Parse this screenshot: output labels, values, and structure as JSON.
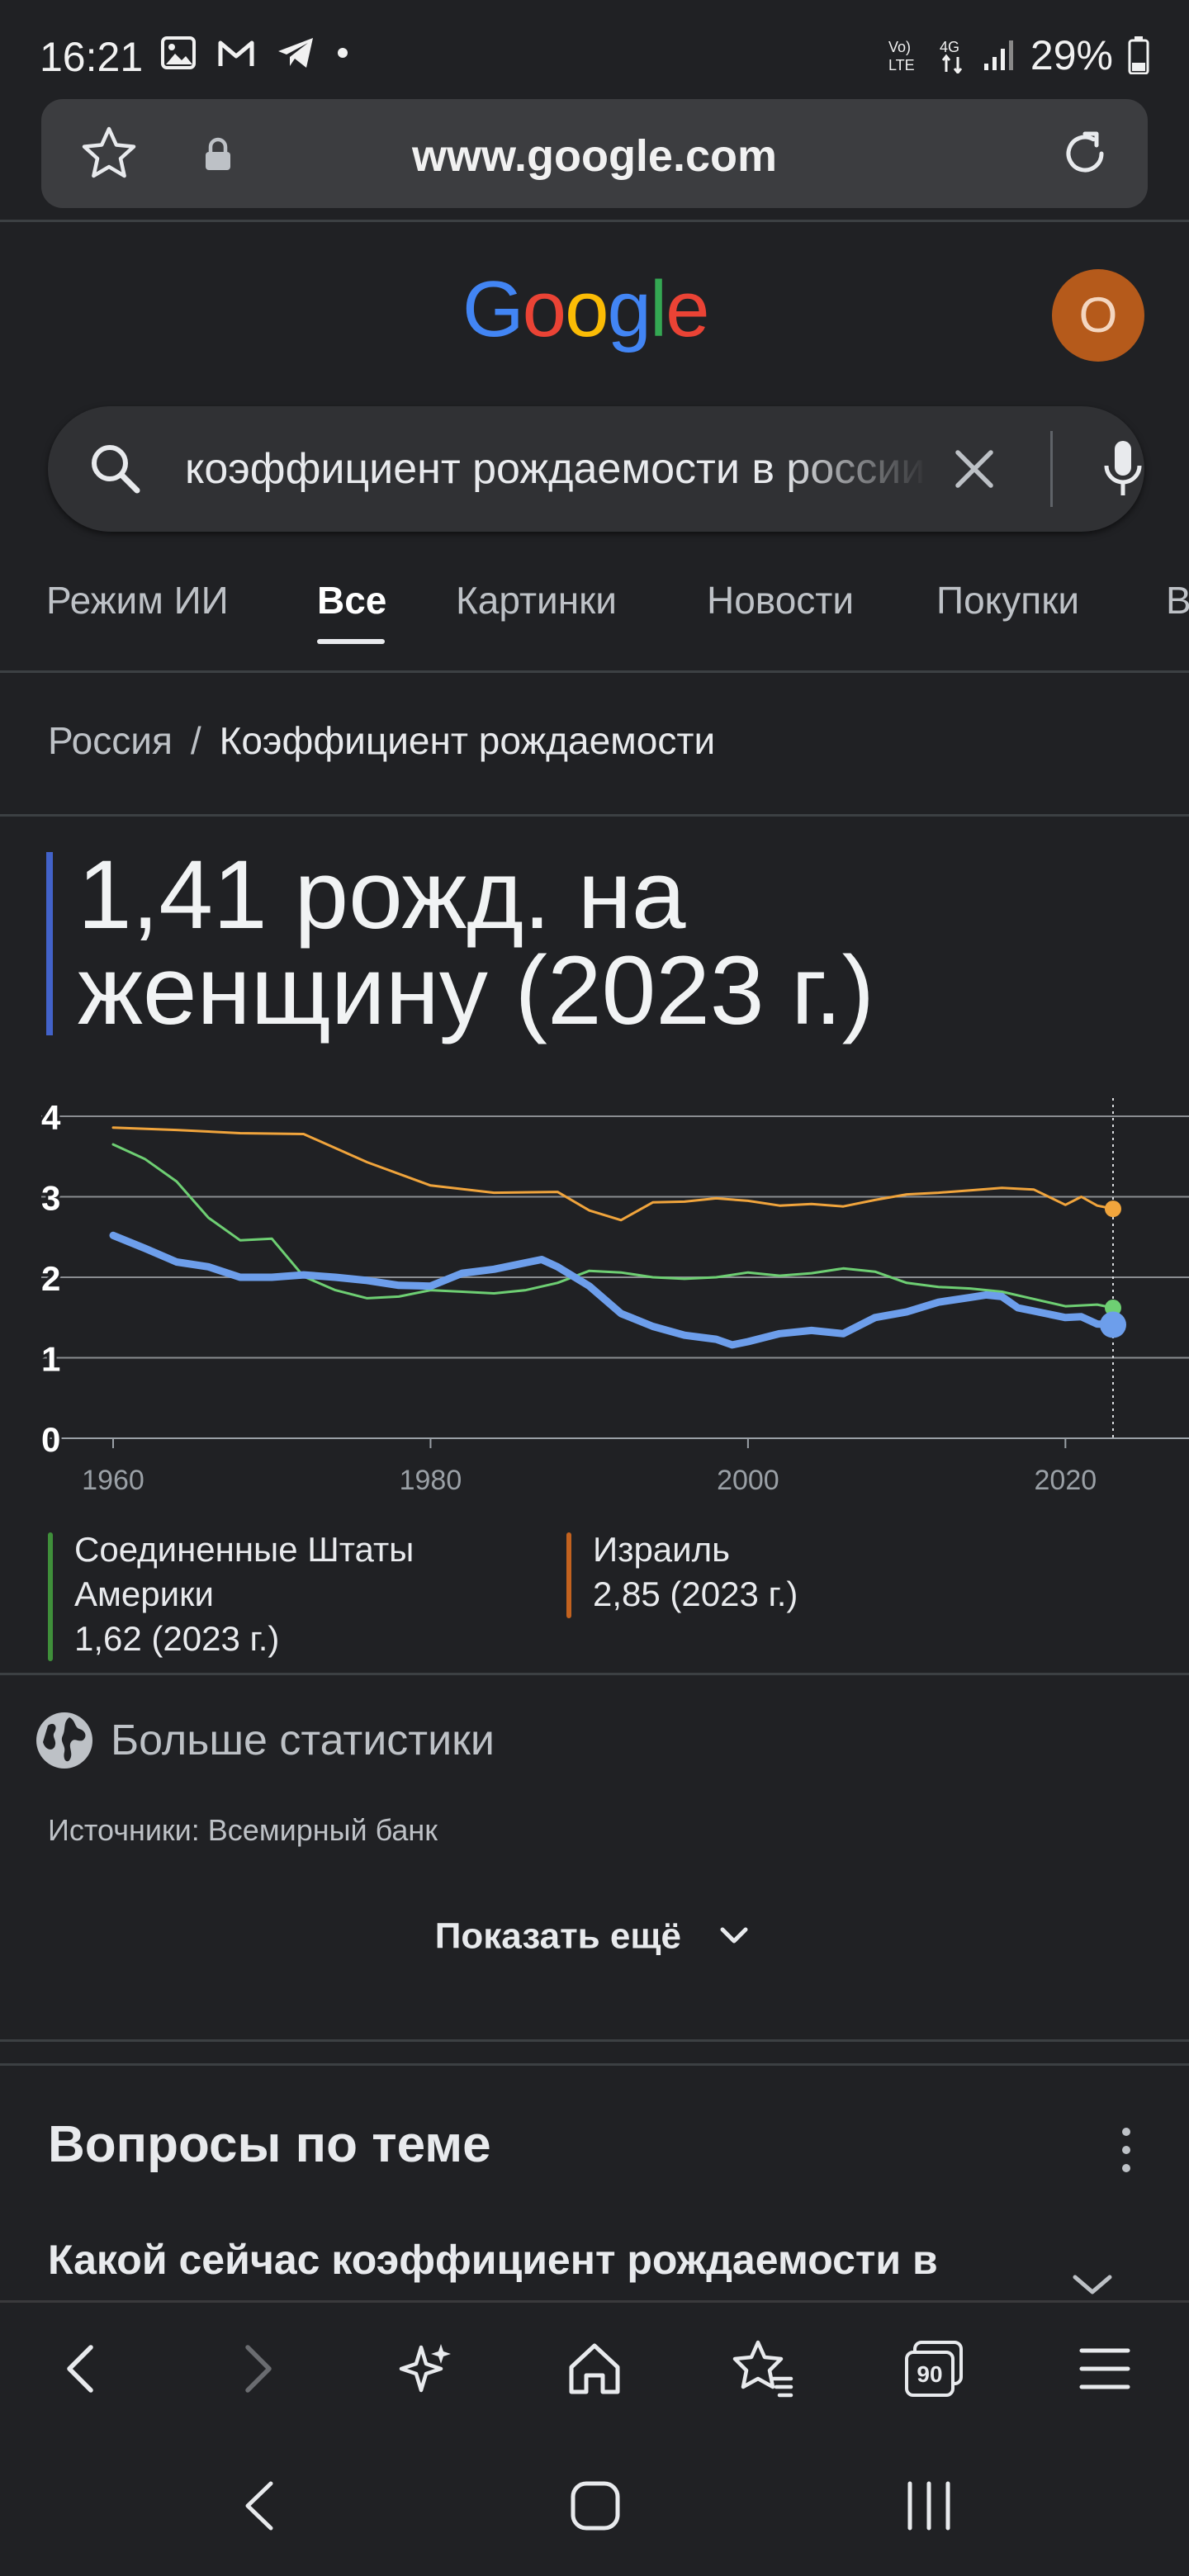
{
  "status_bar": {
    "time": "16:21",
    "icons": [
      "image-notification-icon",
      "gmail-icon",
      "telegram-icon",
      "dot-icon"
    ],
    "network": "VoLTE 4G",
    "battery": "29%"
  },
  "browser": {
    "url": "www.google.com"
  },
  "header": {
    "logo_letters": [
      "G",
      "o",
      "o",
      "g",
      "l",
      "e"
    ],
    "logo_colors": [
      "#4285f4",
      "#ea4335",
      "#fbbc05",
      "#4285f4",
      "#34a853",
      "#ea4335"
    ],
    "avatar_letter": "O",
    "avatar_color": "#b55a1b"
  },
  "search": {
    "query": "коэффициент рождаемости в россии"
  },
  "tabs": [
    {
      "label": "Режим ИИ",
      "active": false
    },
    {
      "label": "Все",
      "active": true
    },
    {
      "label": "Картинки",
      "active": false
    },
    {
      "label": "Новости",
      "active": false
    },
    {
      "label": "Покупки",
      "active": false
    },
    {
      "label": "В",
      "active": false
    }
  ],
  "breadcrumb": {
    "country": "Россия",
    "topic": "Коэффициент рождаемости"
  },
  "headline": {
    "line1": "1,41 рожд. на",
    "line2": "женщину (2023 г.)"
  },
  "chart_data": {
    "type": "line",
    "ylim": [
      0,
      4
    ],
    "xlim": [
      1960,
      2023
    ],
    "y_ticks": [
      "0",
      "1",
      "2",
      "3",
      "4"
    ],
    "x_ticks": [
      "1960",
      "1980",
      "2000",
      "2020"
    ],
    "grid": true,
    "series": [
      {
        "name": "Израиль",
        "color": "#f0a43c",
        "x": [
          1960,
          1964,
          1968,
          1972,
          1976,
          1980,
          1984,
          1988,
          1990,
          1992,
          1994,
          1996,
          1998,
          2000,
          2002,
          2004,
          2006,
          2008,
          2010,
          2012,
          2014,
          2016,
          2018,
          2020,
          2021,
          2022,
          2023
        ],
        "values": [
          3.86,
          3.83,
          3.79,
          3.78,
          3.43,
          3.14,
          3.05,
          3.06,
          2.83,
          2.71,
          2.93,
          2.94,
          2.98,
          2.95,
          2.89,
          2.91,
          2.88,
          2.96,
          3.03,
          3.05,
          3.08,
          3.11,
          3.09,
          2.9,
          3.0,
          2.89,
          2.85
        ]
      },
      {
        "name": "Соединенные Штаты Америки",
        "color": "#6ecf73",
        "x": [
          1960,
          1962,
          1964,
          1966,
          1968,
          1970,
          1972,
          1974,
          1976,
          1978,
          1980,
          1982,
          1984,
          1986,
          1988,
          1990,
          1992,
          1994,
          1996,
          1998,
          2000,
          2002,
          2004,
          2006,
          2008,
          2010,
          2012,
          2014,
          2016,
          2018,
          2020,
          2022,
          2023
        ],
        "values": [
          3.65,
          3.47,
          3.19,
          2.74,
          2.46,
          2.48,
          2.01,
          1.84,
          1.74,
          1.76,
          1.84,
          1.82,
          1.8,
          1.84,
          1.93,
          2.08,
          2.06,
          2.0,
          1.98,
          2.0,
          2.06,
          2.02,
          2.05,
          2.11,
          2.07,
          1.93,
          1.88,
          1.86,
          1.82,
          1.73,
          1.64,
          1.66,
          1.62
        ]
      },
      {
        "name": "Россия",
        "color": "#6d9eeb",
        "x": [
          1960,
          1962,
          1964,
          1966,
          1968,
          1970,
          1972,
          1974,
          1976,
          1978,
          1980,
          1982,
          1984,
          1986,
          1987,
          1988,
          1990,
          1992,
          1994,
          1996,
          1998,
          1999,
          2000,
          2002,
          2004,
          2006,
          2008,
          2010,
          2012,
          2014,
          2015,
          2016,
          2017,
          2018,
          2020,
          2021,
          2022,
          2023
        ],
        "values": [
          2.52,
          2.36,
          2.19,
          2.13,
          2.0,
          2.0,
          2.03,
          2.0,
          1.96,
          1.9,
          1.89,
          2.05,
          2.1,
          2.18,
          2.22,
          2.13,
          1.89,
          1.55,
          1.39,
          1.28,
          1.23,
          1.16,
          1.2,
          1.3,
          1.34,
          1.3,
          1.5,
          1.57,
          1.69,
          1.75,
          1.78,
          1.76,
          1.62,
          1.58,
          1.5,
          1.51,
          1.42,
          1.41
        ]
      }
    ]
  },
  "legend": [
    {
      "line1": "Соединенные Штаты",
      "line2": "Америки",
      "value": "1,62 (2023 г.)",
      "color": "#3f8f3a"
    },
    {
      "line1": "Израиль",
      "value": "2,85 (2023 г.)",
      "color": "#c2621f"
    }
  ],
  "stats": {
    "more_label": "Больше статистики",
    "sources": "Источники: Всемирный банк",
    "show_more": "Показать ещё"
  },
  "faq": {
    "title": "Вопросы по теме",
    "first_question": "Какой сейчас коэффициент рождаемости в"
  },
  "toolbar": {
    "icons": [
      "back-icon",
      "forward-icon",
      "ai-sparkle-icon",
      "home-icon",
      "bookmarks-icon",
      "tabs-icon",
      "menu-icon"
    ],
    "tabs_count": "90"
  },
  "system_nav": {
    "icons": [
      "back-nav-icon",
      "home-nav-icon",
      "recents-nav-icon"
    ]
  }
}
